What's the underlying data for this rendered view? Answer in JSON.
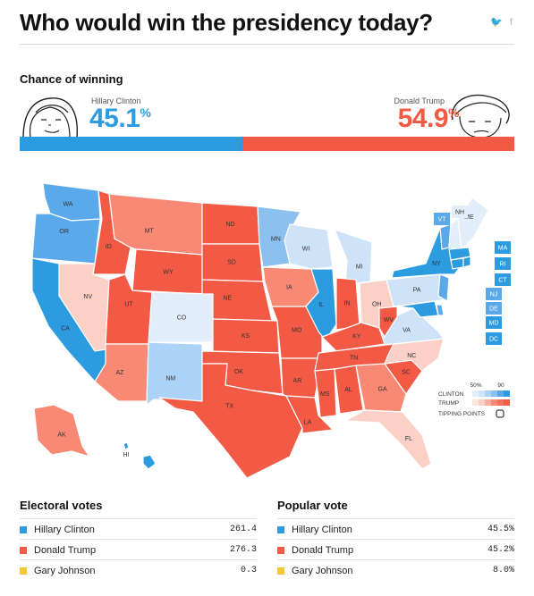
{
  "title": "Who would win the presidency today?",
  "chance": {
    "heading": "Chance of winning",
    "clinton": {
      "name": "Hillary Clinton",
      "pct": "45.1",
      "unit": "%",
      "value": 45.1
    },
    "trump": {
      "name": "Donald Trump",
      "pct": "54.9",
      "unit": "%",
      "value": 54.9
    }
  },
  "colors": {
    "clinton": "#2d9be0",
    "trump": "#f35a45",
    "johnson": "#f4c62f"
  },
  "map": {
    "states": [
      "WA",
      "OR",
      "CA",
      "ID",
      "NV",
      "MT",
      "WY",
      "UT",
      "AZ",
      "CO",
      "NM",
      "ND",
      "SD",
      "NE",
      "KS",
      "OK",
      "TX",
      "MN",
      "IA",
      "MO",
      "AR",
      "LA",
      "WI",
      "IL",
      "MI",
      "IN",
      "OH",
      "KY",
      "TN",
      "MS",
      "AL",
      "GA",
      "FL",
      "SC",
      "NC",
      "VA",
      "WV",
      "PA",
      "NY",
      "VT",
      "NH",
      "ME",
      "MA",
      "RI",
      "CT",
      "NJ",
      "DE",
      "MD",
      "DC",
      "AK",
      "HI"
    ],
    "legend": {
      "pct_low": "50%",
      "pct_high": "90",
      "clinton": "CLINTON",
      "trump": "TRUMP",
      "tipping": "TIPPING POINTS"
    }
  },
  "electoral": {
    "heading": "Electoral votes",
    "rows": [
      {
        "name": "Hillary Clinton",
        "value": "261.4"
      },
      {
        "name": "Donald Trump",
        "value": "276.3"
      },
      {
        "name": "Gary Johnson",
        "value": "0.3"
      }
    ]
  },
  "popular": {
    "heading": "Popular vote",
    "rows": [
      {
        "name": "Hillary Clinton",
        "value": "45.5%"
      },
      {
        "name": "Donald Trump",
        "value": "45.2%"
      },
      {
        "name": "Gary Johnson",
        "value": "8.0%"
      }
    ]
  }
}
